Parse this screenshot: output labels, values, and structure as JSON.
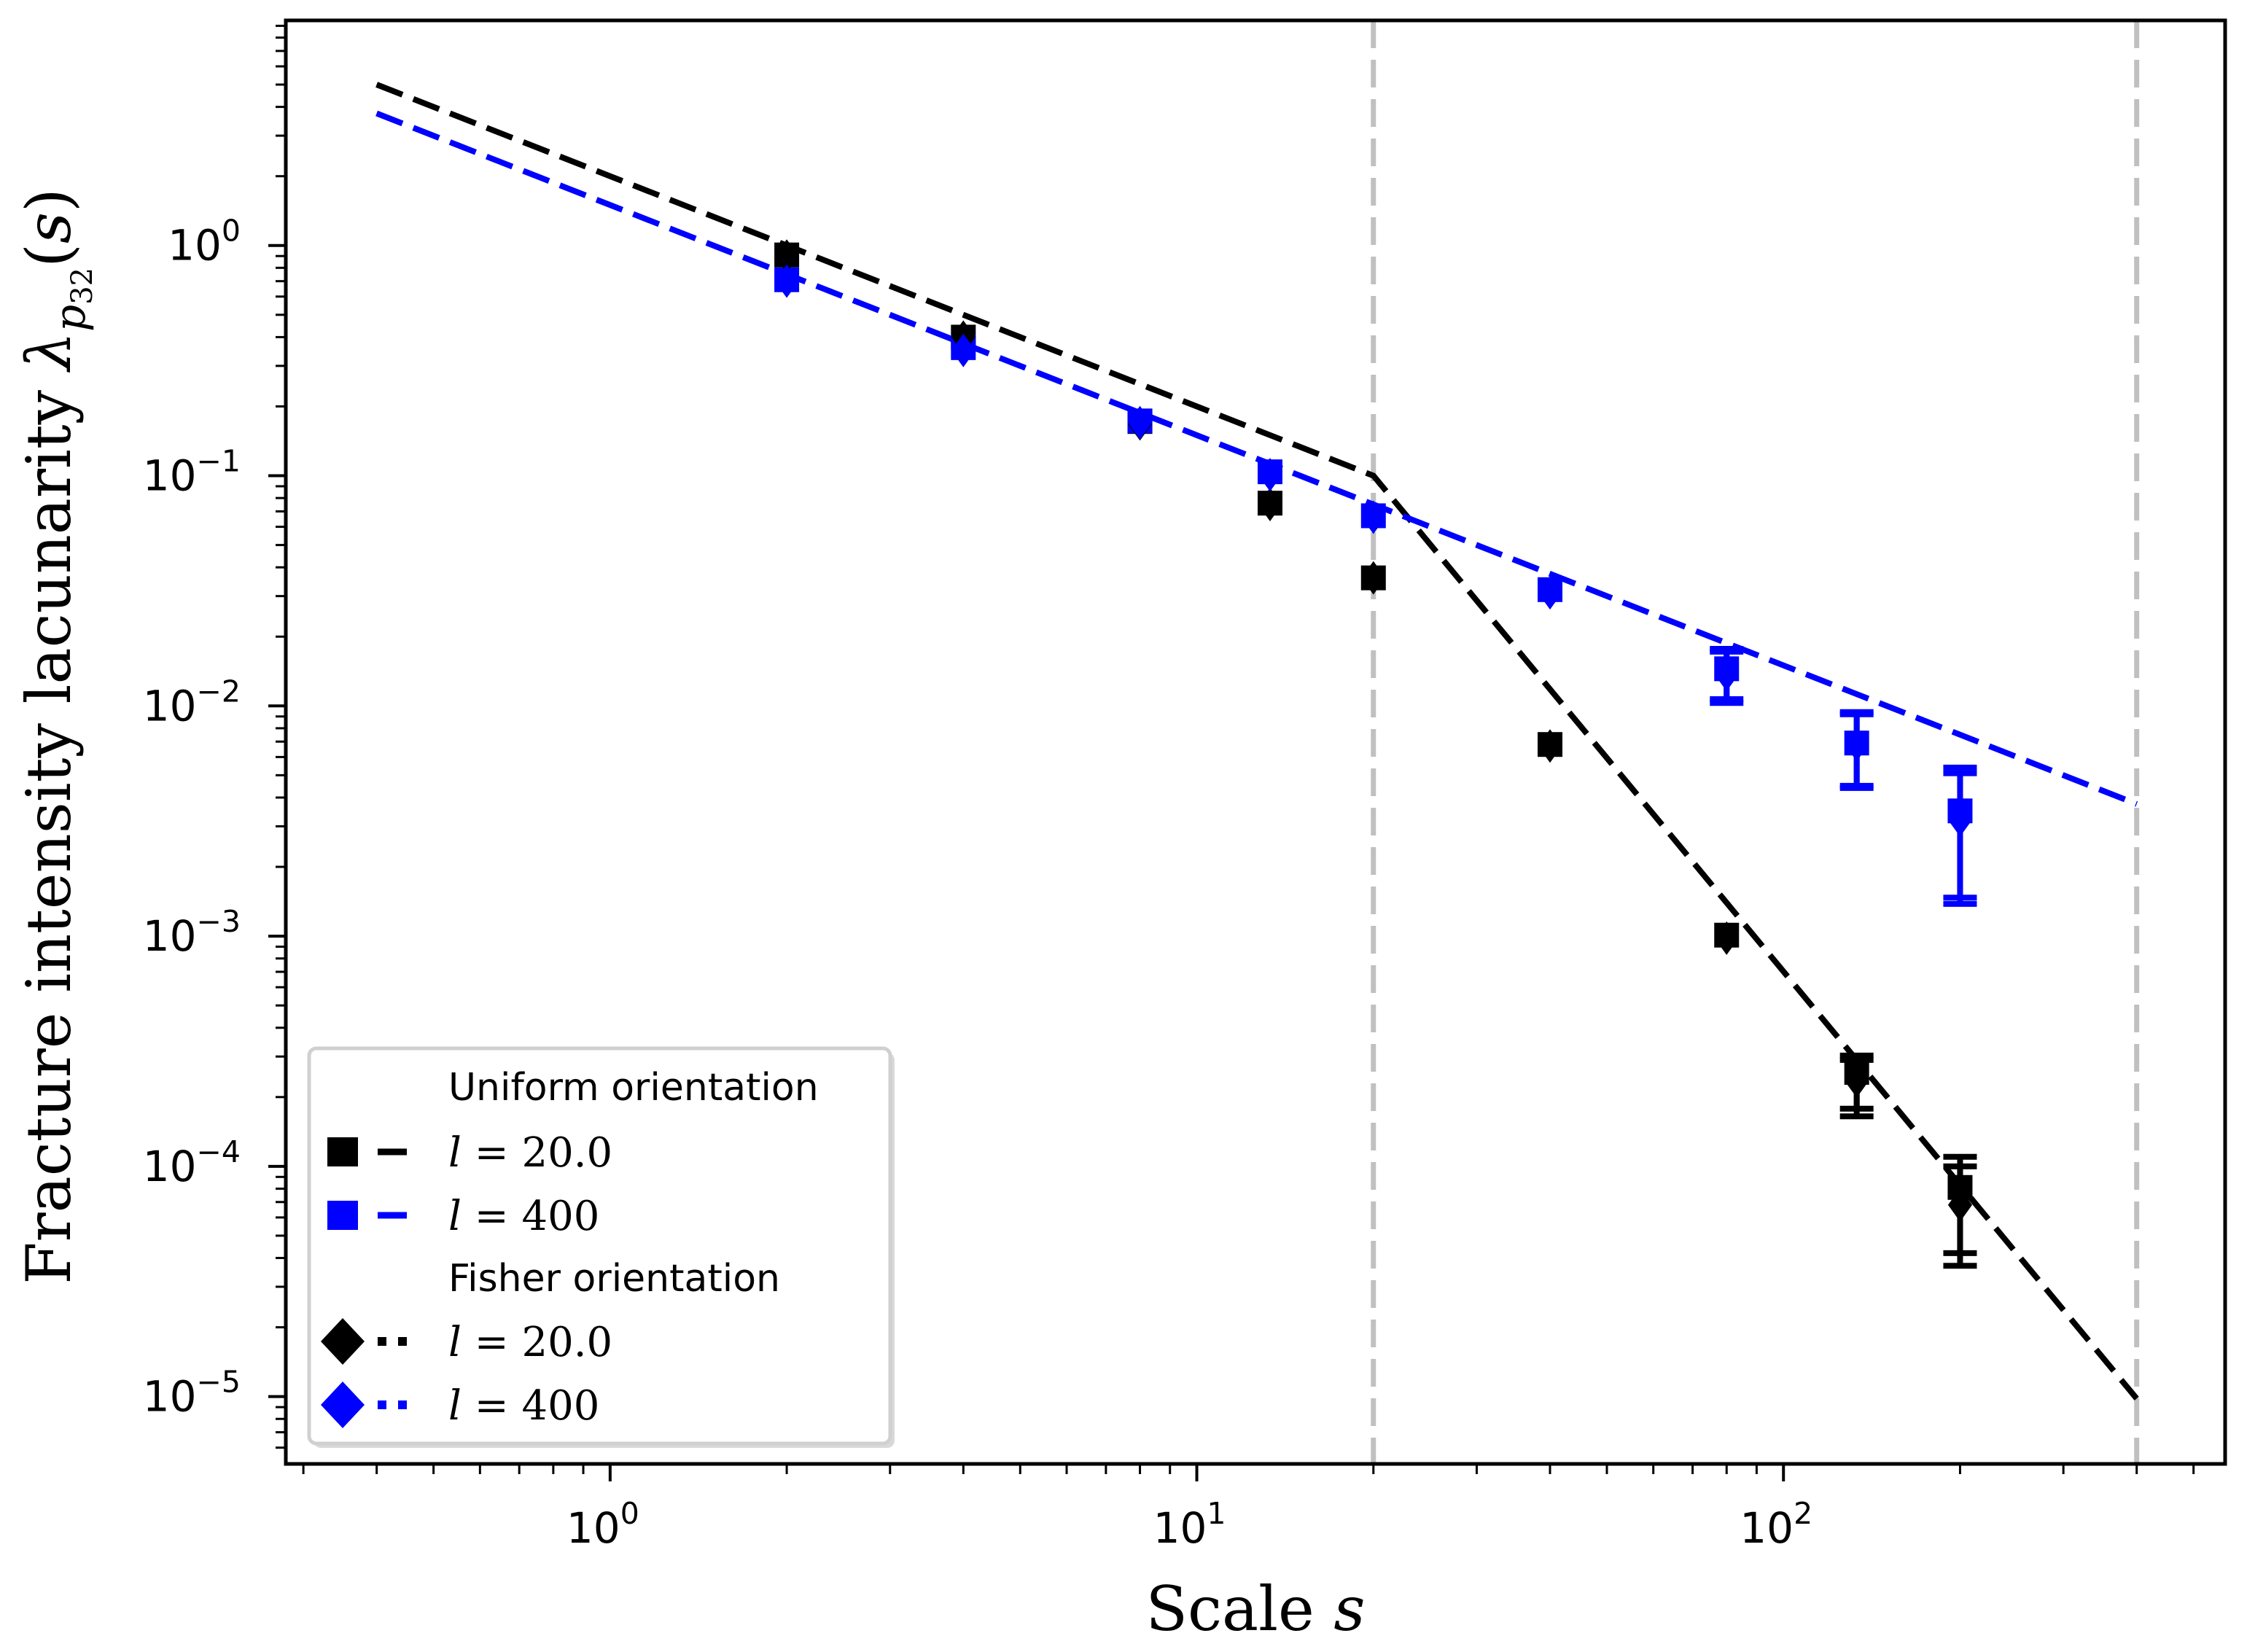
{
  "chart_data": {
    "type": "scatter",
    "title": "",
    "xlabel": "Scale s",
    "ylabel": "Fracture intensity lacunarity λ_{p32}(s)",
    "xlabel_parts": {
      "text": "Scale ",
      "italic": "s"
    },
    "ylabel_parts": {
      "text": "Fracture intensity lacunarity ",
      "symbol": "λ",
      "sub": "p",
      "subsub": "32",
      "arg_open": "(",
      "arg": "s",
      "arg_close": ")"
    },
    "xscale": "log",
    "yscale": "log",
    "xlim": [
      0.28,
      566
    ],
    "ylim": [
      5.1e-06,
      9.5
    ],
    "grid": false,
    "x_ticks": [
      {
        "value": 1,
        "base": "10",
        "exp": "0"
      },
      {
        "value": 10,
        "base": "10",
        "exp": "1"
      },
      {
        "value": 100,
        "base": "10",
        "exp": "2"
      }
    ],
    "y_ticks": [
      {
        "value": 1,
        "base": "10",
        "exp": "0"
      },
      {
        "value": 0.1,
        "base": "10",
        "exp": "−1"
      },
      {
        "value": 0.01,
        "base": "10",
        "exp": "−2"
      },
      {
        "value": 0.001,
        "base": "10",
        "exp": "−3"
      },
      {
        "value": 0.0001,
        "base": "10",
        "exp": "−4"
      },
      {
        "value": 1e-05,
        "base": "10",
        "exp": "−5"
      }
    ],
    "vertical_reference_lines": [
      {
        "x": 20,
        "color": "#c0c0c0",
        "style": "dashed"
      },
      {
        "x": 400,
        "color": "#c0c0c0",
        "style": "dashed"
      }
    ],
    "fit_lines": [
      {
        "name": "l = 20.0 fit",
        "color": "#000000",
        "style": "dashed",
        "points": [
          [
            0.4,
            5.0
          ],
          [
            20,
            0.1
          ],
          [
            400,
            9.8e-06
          ]
        ]
      },
      {
        "name": "l = 400 fit",
        "color": "#0000ff",
        "style": "dashed",
        "points": [
          [
            0.4,
            3.75
          ],
          [
            400,
            0.00375
          ]
        ]
      }
    ],
    "series": [
      {
        "name": "Uniform orientation, l = 20.0",
        "group": "Uniform orientation",
        "marker": "square",
        "color": "#000000",
        "x": [
          2,
          4,
          8,
          13.33,
          20,
          40,
          80,
          133.3,
          200
        ],
        "y": [
          0.91,
          0.4,
          0.172,
          0.076,
          0.036,
          0.0068,
          0.00101,
          0.000256,
          8.1e-05
        ],
        "yerr_low": [
          null,
          null,
          null,
          null,
          null,
          null,
          null,
          0.000178,
          4.2e-05
        ],
        "yerr_high": [
          null,
          null,
          null,
          null,
          null,
          null,
          null,
          0.000303,
          0.00011
        ]
      },
      {
        "name": "Uniform orientation, l = 400",
        "group": "Uniform orientation",
        "marker": "square",
        "color": "#0000ff",
        "x": [
          2,
          4,
          8,
          13.33,
          20,
          40,
          80,
          133.3,
          200
        ],
        "y": [
          0.71,
          0.36,
          0.173,
          0.104,
          0.067,
          0.032,
          0.0145,
          0.0069,
          0.0035
        ],
        "yerr_low": [
          null,
          null,
          null,
          null,
          null,
          null,
          0.0107,
          0.0045,
          0.00147
        ],
        "yerr_high": [
          null,
          null,
          null,
          null,
          null,
          null,
          0.0177,
          0.0094,
          0.0054
        ]
      },
      {
        "name": "Fisher orientation, l = 20.0",
        "group": "Fisher orientation",
        "marker": "diamond",
        "color": "#000000",
        "x": [
          2,
          4,
          8,
          13.33,
          20,
          40,
          80,
          133.3,
          200
        ],
        "y": [
          0.9,
          0.4,
          0.168,
          0.075,
          0.036,
          0.0067,
          0.00098,
          0.000235,
          6.8e-05
        ],
        "yerr_low": [
          null,
          null,
          null,
          null,
          null,
          null,
          null,
          0.000165,
          3.7e-05
        ],
        "yerr_high": [
          null,
          null,
          null,
          null,
          null,
          null,
          null,
          0.00029,
          0.0001
        ]
      },
      {
        "name": "Fisher orientation, l = 400",
        "group": "Fisher orientation",
        "marker": "diamond",
        "color": "#0000ff",
        "x": [
          2,
          4,
          8,
          13.33,
          20,
          40,
          80,
          133.3,
          200
        ],
        "y": [
          0.7,
          0.35,
          0.17,
          0.101,
          0.066,
          0.031,
          0.0137,
          0.0068,
          0.0032
        ],
        "yerr_low": [
          null,
          null,
          null,
          null,
          null,
          null,
          0.0103,
          0.0044,
          0.00138
        ],
        "yerr_high": [
          null,
          null,
          null,
          null,
          null,
          null,
          0.0172,
          0.0092,
          0.0051
        ]
      }
    ],
    "legend": {
      "placement": "lower-left",
      "entries": [
        {
          "type": "title",
          "label": "Uniform orientation"
        },
        {
          "type": "entry",
          "marker": "square",
          "line": "dashed",
          "color": "#000000",
          "var": "l",
          "eq": " = 20.0"
        },
        {
          "type": "entry",
          "marker": "square",
          "line": "dashed",
          "color": "#0000ff",
          "var": "l",
          "eq": " = 400"
        },
        {
          "type": "title",
          "label": "Fisher orientation"
        },
        {
          "type": "entry",
          "marker": "diamond",
          "line": "dotted",
          "color": "#000000",
          "var": "l",
          "eq": " = 20.0"
        },
        {
          "type": "entry",
          "marker": "diamond",
          "line": "dotted",
          "color": "#0000ff",
          "var": "l",
          "eq": " = 400"
        }
      ]
    }
  }
}
